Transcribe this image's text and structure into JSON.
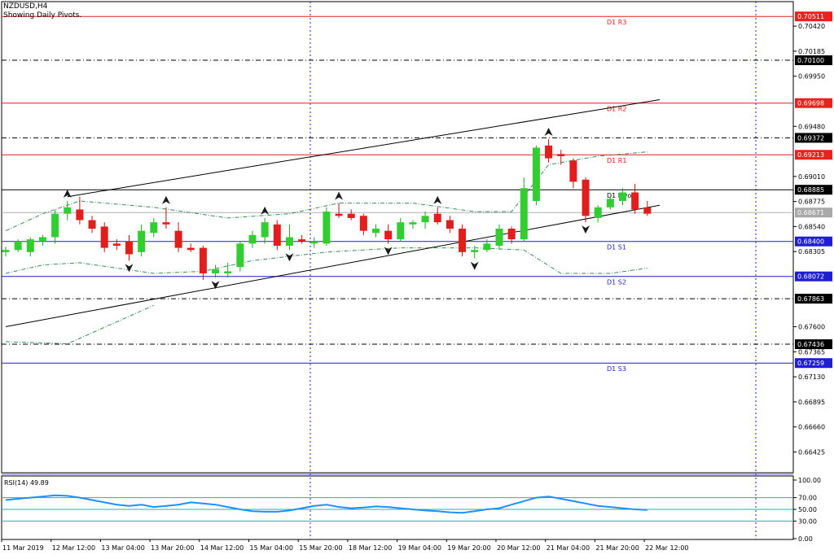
{
  "header": {
    "symbol": "NZDUSD,H4",
    "subtitle": "Showing Daily Pivots."
  },
  "colors": {
    "background": "#ffffff",
    "bull": "#32cd32",
    "bear": "#e11d1d",
    "resistance": "#e02020",
    "support": "#1f1fd0",
    "pivot": "#000000",
    "channel": "#000000",
    "envelope": "#3b8b5a",
    "rsi": "#1e90ff",
    "rsi_levels": "#20b2aa",
    "grid_vertical": "#2020c0",
    "current_price_bg": "#a9a9a9"
  },
  "chart_data": [
    {
      "type": "candlestick",
      "title": "NZDUSD,H4",
      "subtitle": "Showing Daily Pivots.",
      "price_range": [
        0.6623,
        0.7065
      ],
      "price_axis_ticks": [
        "0.70420",
        "0.70185",
        "0.69950",
        "0.69480",
        "0.69010",
        "0.68775",
        "0.68540",
        "0.68305",
        "0.67600",
        "0.67365",
        "0.67130",
        "0.66895",
        "0.66660",
        "0.66425"
      ],
      "time_axis_labels": [
        "11 Mar 2019",
        "12 Mar 12:00",
        "13 Mar 04:00",
        "13 Mar 20:00",
        "14 Mar 12:00",
        "15 Mar 04:00",
        "15 Mar 20:00",
        "18 Mar 12:00",
        "19 Mar 04:00",
        "19 Mar 20:00",
        "20 Mar 12:00",
        "21 Mar 04:00",
        "21 Mar 20:00",
        "22 Mar 12:00"
      ],
      "pivot_levels": [
        {
          "label": "D1 R3",
          "value": 0.70511,
          "price_label": "0.70511",
          "kind": "resistance",
          "style": "solid"
        },
        {
          "label": "",
          "value": 0.701,
          "price_label": "0.70100",
          "kind": "pivot",
          "style": "dashdot"
        },
        {
          "label": "D1 R2",
          "value": 0.69698,
          "price_label": "0.69698",
          "kind": "resistance",
          "style": "solid"
        },
        {
          "label": "",
          "value": 0.69372,
          "price_label": "0.69372",
          "kind": "pivot",
          "style": "dashdot"
        },
        {
          "label": "D1 R1",
          "value": 0.69213,
          "price_label": "0.69213",
          "kind": "resistance",
          "style": "solid"
        },
        {
          "label": "D1 Pivot",
          "value": 0.68885,
          "price_label": "0.68885",
          "kind": "pivot",
          "style": "solid"
        },
        {
          "label": "D1 S1",
          "value": 0.684,
          "price_label": "0.68400",
          "kind": "support",
          "style": "solid"
        },
        {
          "label": "D1 S2",
          "value": 0.68072,
          "price_label": "0.68072",
          "kind": "support",
          "style": "solid"
        },
        {
          "label": "",
          "value": 0.67863,
          "price_label": "0.67863",
          "kind": "pivot",
          "style": "dashdot"
        },
        {
          "label": "",
          "value": 0.67436,
          "price_label": "0.67436",
          "kind": "pivot",
          "style": "dashdot"
        },
        {
          "label": "D1 S3",
          "value": 0.67259,
          "price_label": "0.67259",
          "kind": "support",
          "style": "solid"
        }
      ],
      "current_price": {
        "value": 0.68671,
        "price_label": "0.68671"
      },
      "candles": [
        {
          "o": 0.683,
          "h": 0.6835,
          "l": 0.6826,
          "c": 0.6832
        },
        {
          "o": 0.6832,
          "h": 0.6842,
          "l": 0.683,
          "c": 0.684
        },
        {
          "o": 0.683,
          "h": 0.6844,
          "l": 0.6826,
          "c": 0.6842
        },
        {
          "o": 0.684,
          "h": 0.6846,
          "l": 0.6836,
          "c": 0.6844
        },
        {
          "o": 0.6844,
          "h": 0.687,
          "l": 0.6838,
          "c": 0.6866
        },
        {
          "o": 0.6866,
          "h": 0.6878,
          "l": 0.686,
          "c": 0.6872
        },
        {
          "o": 0.687,
          "h": 0.6882,
          "l": 0.6856,
          "c": 0.686
        },
        {
          "o": 0.686,
          "h": 0.6864,
          "l": 0.6848,
          "c": 0.6852
        },
        {
          "o": 0.6854,
          "h": 0.6858,
          "l": 0.683,
          "c": 0.6834
        },
        {
          "o": 0.6838,
          "h": 0.6842,
          "l": 0.6832,
          "c": 0.6836
        },
        {
          "o": 0.684,
          "h": 0.6846,
          "l": 0.6822,
          "c": 0.6828
        },
        {
          "o": 0.683,
          "h": 0.6856,
          "l": 0.6826,
          "c": 0.685
        },
        {
          "o": 0.6848,
          "h": 0.6862,
          "l": 0.6844,
          "c": 0.6858
        },
        {
          "o": 0.6858,
          "h": 0.6872,
          "l": 0.6852,
          "c": 0.6856
        },
        {
          "o": 0.685,
          "h": 0.6858,
          "l": 0.683,
          "c": 0.6834
        },
        {
          "o": 0.6834,
          "h": 0.6838,
          "l": 0.683,
          "c": 0.6832
        },
        {
          "o": 0.6834,
          "h": 0.6836,
          "l": 0.6804,
          "c": 0.681
        },
        {
          "o": 0.681,
          "h": 0.6818,
          "l": 0.6806,
          "c": 0.6814
        },
        {
          "o": 0.681,
          "h": 0.682,
          "l": 0.6806,
          "c": 0.6812
        },
        {
          "o": 0.6816,
          "h": 0.684,
          "l": 0.6812,
          "c": 0.6838
        },
        {
          "o": 0.6838,
          "h": 0.685,
          "l": 0.6834,
          "c": 0.6846
        },
        {
          "o": 0.6844,
          "h": 0.6862,
          "l": 0.6838,
          "c": 0.6858
        },
        {
          "o": 0.6856,
          "h": 0.686,
          "l": 0.6832,
          "c": 0.6836
        },
        {
          "o": 0.6836,
          "h": 0.6856,
          "l": 0.6832,
          "c": 0.6844
        },
        {
          "o": 0.6842,
          "h": 0.6846,
          "l": 0.6838,
          "c": 0.684
        },
        {
          "o": 0.6838,
          "h": 0.6844,
          "l": 0.6834,
          "c": 0.684
        },
        {
          "o": 0.6838,
          "h": 0.6872,
          "l": 0.6836,
          "c": 0.6868
        },
        {
          "o": 0.6866,
          "h": 0.6876,
          "l": 0.6862,
          "c": 0.6864
        },
        {
          "o": 0.6866,
          "h": 0.687,
          "l": 0.686,
          "c": 0.6862
        },
        {
          "o": 0.6864,
          "h": 0.6866,
          "l": 0.6846,
          "c": 0.685
        },
        {
          "o": 0.6848,
          "h": 0.6856,
          "l": 0.6844,
          "c": 0.6852
        },
        {
          "o": 0.685,
          "h": 0.6856,
          "l": 0.6838,
          "c": 0.6842
        },
        {
          "o": 0.6842,
          "h": 0.6862,
          "l": 0.684,
          "c": 0.6858
        },
        {
          "o": 0.6856,
          "h": 0.686,
          "l": 0.6852,
          "c": 0.6858
        },
        {
          "o": 0.6858,
          "h": 0.6868,
          "l": 0.6852,
          "c": 0.6864
        },
        {
          "o": 0.6866,
          "h": 0.6872,
          "l": 0.6856,
          "c": 0.6858
        },
        {
          "o": 0.686,
          "h": 0.6864,
          "l": 0.6848,
          "c": 0.6852
        },
        {
          "o": 0.6852,
          "h": 0.6856,
          "l": 0.6826,
          "c": 0.683
        },
        {
          "o": 0.683,
          "h": 0.6836,
          "l": 0.6824,
          "c": 0.6832
        },
        {
          "o": 0.6832,
          "h": 0.6842,
          "l": 0.683,
          "c": 0.6838
        },
        {
          "o": 0.6836,
          "h": 0.6856,
          "l": 0.6832,
          "c": 0.6852
        },
        {
          "o": 0.6852,
          "h": 0.6854,
          "l": 0.6838,
          "c": 0.6842
        },
        {
          "o": 0.6842,
          "h": 0.69,
          "l": 0.684,
          "c": 0.689
        },
        {
          "o": 0.6878,
          "h": 0.693,
          "l": 0.6874,
          "c": 0.6928
        },
        {
          "o": 0.693,
          "h": 0.6936,
          "l": 0.6914,
          "c": 0.6918
        },
        {
          "o": 0.6922,
          "h": 0.6926,
          "l": 0.6912,
          "c": 0.692
        },
        {
          "o": 0.6916,
          "h": 0.6918,
          "l": 0.689,
          "c": 0.6896
        },
        {
          "o": 0.6898,
          "h": 0.69,
          "l": 0.6858,
          "c": 0.6864
        },
        {
          "o": 0.6862,
          "h": 0.6874,
          "l": 0.6858,
          "c": 0.6872
        },
        {
          "o": 0.6872,
          "h": 0.6882,
          "l": 0.687,
          "c": 0.688
        },
        {
          "o": 0.6878,
          "h": 0.689,
          "l": 0.6874,
          "c": 0.6886
        },
        {
          "o": 0.6886,
          "h": 0.6894,
          "l": 0.6866,
          "c": 0.687
        },
        {
          "o": 0.6872,
          "h": 0.6878,
          "l": 0.6864,
          "c": 0.6866
        }
      ],
      "fractals": [
        {
          "i": 5,
          "dir": "up"
        },
        {
          "i": 10,
          "dir": "down"
        },
        {
          "i": 13,
          "dir": "up"
        },
        {
          "i": 17,
          "dir": "down"
        },
        {
          "i": 21,
          "dir": "up"
        },
        {
          "i": 23,
          "dir": "down"
        },
        {
          "i": 27,
          "dir": "up"
        },
        {
          "i": 31,
          "dir": "down"
        },
        {
          "i": 35,
          "dir": "up"
        },
        {
          "i": 38,
          "dir": "down"
        },
        {
          "i": 44,
          "dir": "up"
        },
        {
          "i": 47,
          "dir": "down"
        }
      ],
      "envelope_upper": [
        [
          0,
          0.685
        ],
        [
          3,
          0.6866
        ],
        [
          6,
          0.6878
        ],
        [
          12,
          0.6872
        ],
        [
          18,
          0.6862
        ],
        [
          23,
          0.6866
        ],
        [
          27,
          0.6876
        ],
        [
          33,
          0.6876
        ],
        [
          38,
          0.6868
        ],
        [
          41,
          0.6868
        ],
        [
          44,
          0.6912
        ],
        [
          48,
          0.692
        ],
        [
          52,
          0.6924
        ]
      ],
      "envelope_lower": [
        [
          0,
          0.681
        ],
        [
          3,
          0.6818
        ],
        [
          6,
          0.682
        ],
        [
          12,
          0.681
        ],
        [
          16,
          0.6812
        ],
        [
          20,
          0.6822
        ],
        [
          26,
          0.683
        ],
        [
          32,
          0.6834
        ],
        [
          38,
          0.6834
        ],
        [
          42,
          0.6832
        ],
        [
          45,
          0.681
        ],
        [
          49,
          0.681
        ],
        [
          52,
          0.6815
        ]
      ],
      "channel_upper": [
        [
          5,
          0.6882
        ],
        [
          53,
          0.6973
        ]
      ],
      "channel_lower": [
        [
          0,
          0.676
        ],
        [
          53,
          0.6874
        ]
      ],
      "lower_band_far": [
        [
          0,
          0.6746
        ],
        [
          5,
          0.6744
        ],
        [
          12,
          0.678
        ]
      ]
    },
    {
      "type": "line",
      "title": "RSI(14) 49.89",
      "indicator": "RSI(14)",
      "last_value": "49.89",
      "ylim": [
        0,
        100
      ],
      "levels": [
        70,
        50,
        30
      ],
      "axis_ticks": [
        "100.00",
        "70.00",
        "50.00",
        "30.00",
        "0.00"
      ],
      "values": [
        66,
        68,
        70,
        72,
        74,
        73,
        70,
        66,
        62,
        58,
        56,
        58,
        54,
        56,
        58,
        62,
        60,
        58,
        54,
        50,
        47,
        46,
        46,
        48,
        52,
        56,
        58,
        54,
        52,
        53,
        55,
        54,
        52,
        50,
        48,
        47,
        45,
        44,
        47,
        50,
        52,
        58,
        64,
        70,
        72,
        68,
        64,
        60,
        56,
        54,
        52,
        50,
        49
      ]
    }
  ]
}
